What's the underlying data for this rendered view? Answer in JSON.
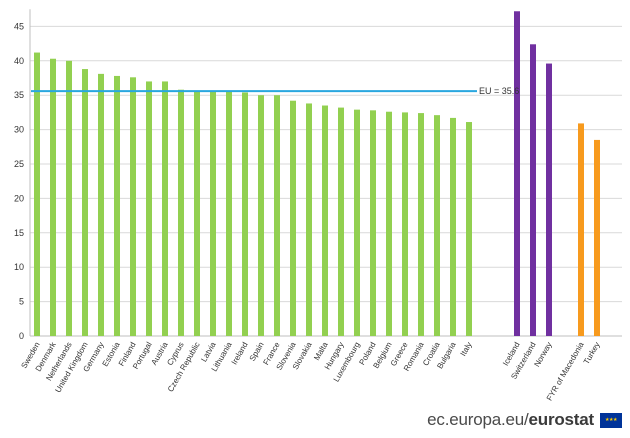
{
  "chart_data": {
    "type": "bar",
    "categories": [
      "Sweden",
      "Denmark",
      "Netherlands",
      "United Kingdom",
      "Germany",
      "Estonia",
      "Finland",
      "Portugal",
      "Austria",
      "Cyprus",
      "Czech Republic",
      "Latvia",
      "Lithuania",
      "Ireland",
      "Spain",
      "France",
      "Slovenia",
      "Slovakia",
      "Malta",
      "Hungary",
      "Luxembourg",
      "Poland",
      "Belgium",
      "Greece",
      "Romania",
      "Croatia",
      "Bulgaria",
      "Italy",
      "Iceland",
      "Switzerland",
      "Norway",
      "FYR of Macedonia",
      "Turkey"
    ],
    "values": [
      41.2,
      40.3,
      40.0,
      38.8,
      38.1,
      37.8,
      37.6,
      37.0,
      37.0,
      35.8,
      35.6,
      35.6,
      35.5,
      35.4,
      35.0,
      35.0,
      34.2,
      33.8,
      33.5,
      33.2,
      32.9,
      32.8,
      32.6,
      32.5,
      32.4,
      32.1,
      31.7,
      31.1,
      47.2,
      42.4,
      39.6,
      30.9,
      28.5
    ],
    "groups": [
      0,
      0,
      0,
      0,
      0,
      0,
      0,
      0,
      0,
      0,
      0,
      0,
      0,
      0,
      0,
      0,
      0,
      0,
      0,
      0,
      0,
      0,
      0,
      0,
      0,
      0,
      0,
      0,
      1,
      1,
      1,
      2,
      2
    ],
    "group_colors": [
      "#92d050",
      "#7030a0",
      "#f79a1e"
    ],
    "reference_line": {
      "value": 35.6,
      "label": "EU = 35.6",
      "color": "#29a7df"
    },
    "ylim": [
      0,
      47.5
    ],
    "yticks": [
      0,
      5,
      10,
      15,
      20,
      25,
      30,
      35,
      40,
      45
    ],
    "grid": true,
    "title": "",
    "xlabel": "",
    "ylabel": ""
  },
  "footer": {
    "site_prefix": "ec.europa.eu/",
    "site_brand": "eurostat"
  }
}
